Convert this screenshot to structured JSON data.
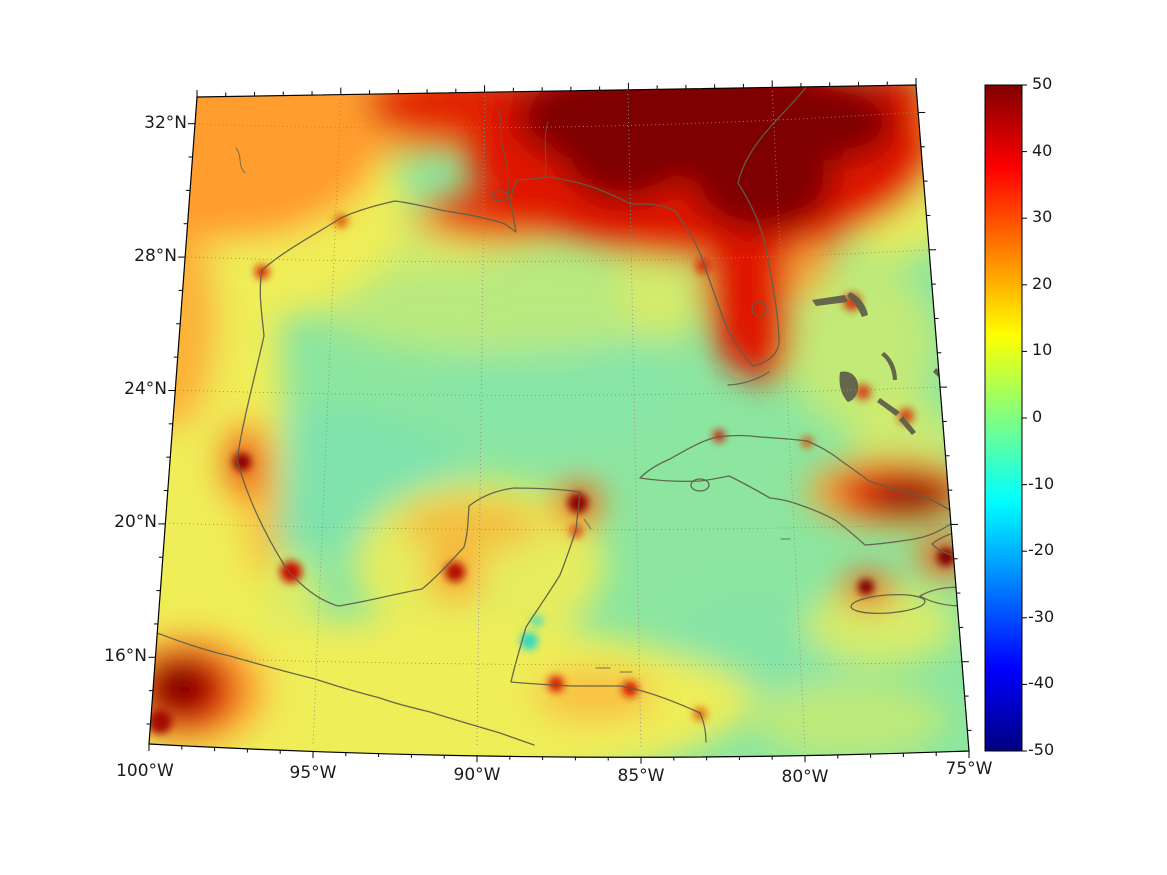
{
  "figure": {
    "kind": "filled-contour map with vertical colorbar",
    "background": "#ffffff"
  },
  "map": {
    "y_tick_labels": [
      "32°N",
      "28°N",
      "24°N",
      "20°N",
      "16°N"
    ],
    "x_tick_labels": [
      "100°W",
      "95°W",
      "90°W",
      "85°W",
      "80°W",
      "75°W"
    ]
  },
  "colorbar": {
    "tick_labels": [
      "50",
      "40",
      "30",
      "20",
      "10",
      "0",
      "-10",
      "-20",
      "-30",
      "-40",
      "-50"
    ],
    "colormap": "jet",
    "max": 50,
    "min": -50,
    "top_color": "#800000",
    "bottom_color": "#000080"
  },
  "chart_data": {
    "type": "heatmap",
    "subtype": "filled-contour geographic field on curvilinear grid",
    "region": "Gulf of Mexico, southeastern United States, Mexico, Yucatan, Cuba, western Caribbean",
    "projection": "conic-style curvilinear grid; meridians converge northward so map frame is a trapezoid (wider at bottom)",
    "lon_ticks_deg_w": [
      100,
      95,
      90,
      85,
      80,
      75
    ],
    "lat_ticks_deg_n": [
      32,
      28,
      24,
      20,
      16
    ],
    "lon_extent_deg_w": [
      100,
      75
    ],
    "lat_extent_deg_n": [
      13.5,
      33
    ],
    "graticule": {
      "lat_lines_deg_n": [
        16,
        20,
        24,
        28,
        32
      ],
      "lon_lines_deg_w": [
        95,
        90,
        85,
        80
      ],
      "style": "dotted gray"
    },
    "coastlines": "dark olive coastline overlay: US Gulf coast, Florida peninsula with Keys and Lake Okeechobee, Mississippi delta, Mexico east and Pacific coasts, Yucatan, Belize/Honduras, Cuba, Isla de la Juventud, Jamaica, western Hispaniola, Bahamas islands",
    "colorbar": {
      "ticks": [
        50,
        40,
        30,
        20,
        10,
        0,
        -10,
        -20,
        -30,
        -40,
        -50
      ],
      "range": [
        -50,
        50
      ],
      "colormap": "jet",
      "orientation": "vertical, right side"
    },
    "field_features": [
      {
        "area": "southeastern US interior northeast of the Gulf coast, incl. north Florida panhandle",
        "approx_value": 50,
        "appearance": "saturated dark-red plateau"
      },
      {
        "area": "Texas / northwest corner of map",
        "approx_value": 25,
        "appearance": "orange"
      },
      {
        "area": "western and southern land margins (NE Mexico interior)",
        "approx_value": 12,
        "appearance": "yellow"
      },
      {
        "area": "open Gulf of Mexico water",
        "approx_value": 3,
        "appearance": "pale green"
      },
      {
        "area": "northwest Caribbean water",
        "approx_value": 3,
        "appearance": "pale green"
      },
      {
        "area": "Florida peninsula",
        "approx_value": 38,
        "appearance": "red"
      },
      {
        "area": "eastern Cuba blotch reaching the right frame edge",
        "approx_value": 47,
        "appearance": "dark red"
      },
      {
        "area": "southern Mexico highlands at bottom-left corner",
        "approx_value": 45,
        "appearance": "dark-red blob"
      },
      {
        "area": "coastal hot spots: Tampico, Veracruz, Campeche, Cancun, Havana, Honduras coast, Jamaica, western Hispaniola, Bahamas banks, top-right corner",
        "approx_value": 40,
        "appearance": "small red / dark-red spots"
      },
      {
        "area": "small spots off the Belize coast",
        "approx_value": -12,
        "appearance": "cyan patches"
      }
    ]
  }
}
